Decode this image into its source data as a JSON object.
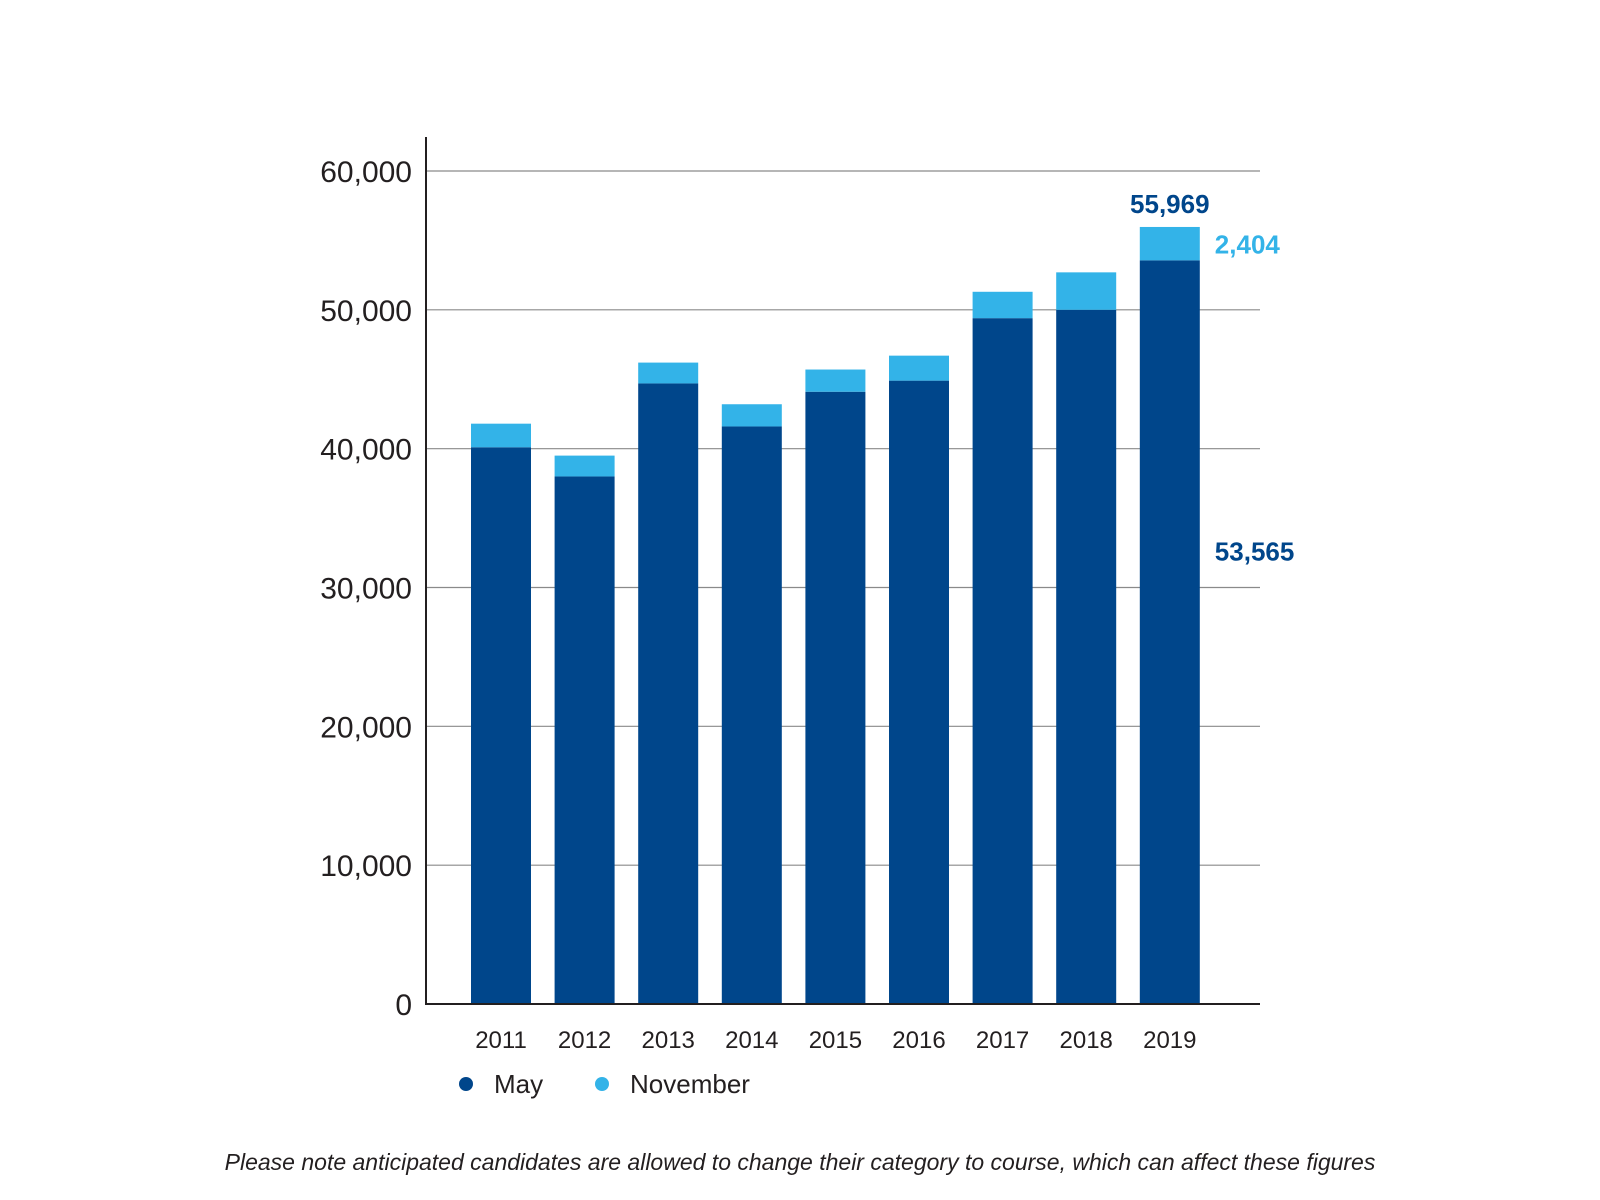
{
  "chart_data": {
    "type": "bar",
    "stacked": true,
    "categories": [
      "2011",
      "2012",
      "2013",
      "2014",
      "2015",
      "2016",
      "2017",
      "2018",
      "2019"
    ],
    "series": [
      {
        "name": "May",
        "color": "#00468b",
        "values": [
          40100,
          38000,
          44700,
          41600,
          44100,
          44900,
          49400,
          50000,
          53565
        ]
      },
      {
        "name": "November",
        "color": "#33b3e8",
        "values": [
          1700,
          1500,
          1500,
          1600,
          1600,
          1800,
          1900,
          2700,
          2404
        ]
      }
    ],
    "ylim": [
      0,
      60000
    ],
    "y_ticks": [
      "0",
      "10,000",
      "20,000",
      "30,000",
      "40,000",
      "50,000",
      "60,000"
    ],
    "y_tick_values": [
      0,
      10000,
      20000,
      30000,
      40000,
      50000,
      60000
    ],
    "grid": true,
    "legend_position": "bottom-left",
    "annotations": [
      {
        "text": "55,969",
        "category": "2019",
        "color": "#00468b",
        "anchor": "top"
      },
      {
        "text": "2,404",
        "category": "2019",
        "color": "#33b3e8",
        "anchor": "november-segment"
      },
      {
        "text": "53,565",
        "category": "2019",
        "color": "#00468b",
        "anchor": "may-segment"
      }
    ],
    "title": "",
    "xlabel": "",
    "ylabel": ""
  },
  "legend": [
    {
      "label": "May",
      "color": "#00468b"
    },
    {
      "label": "November",
      "color": "#33b3e8"
    }
  ],
  "footnote": "Please note anticipated candidates are allowed to change their category to course, which can affect these figures"
}
